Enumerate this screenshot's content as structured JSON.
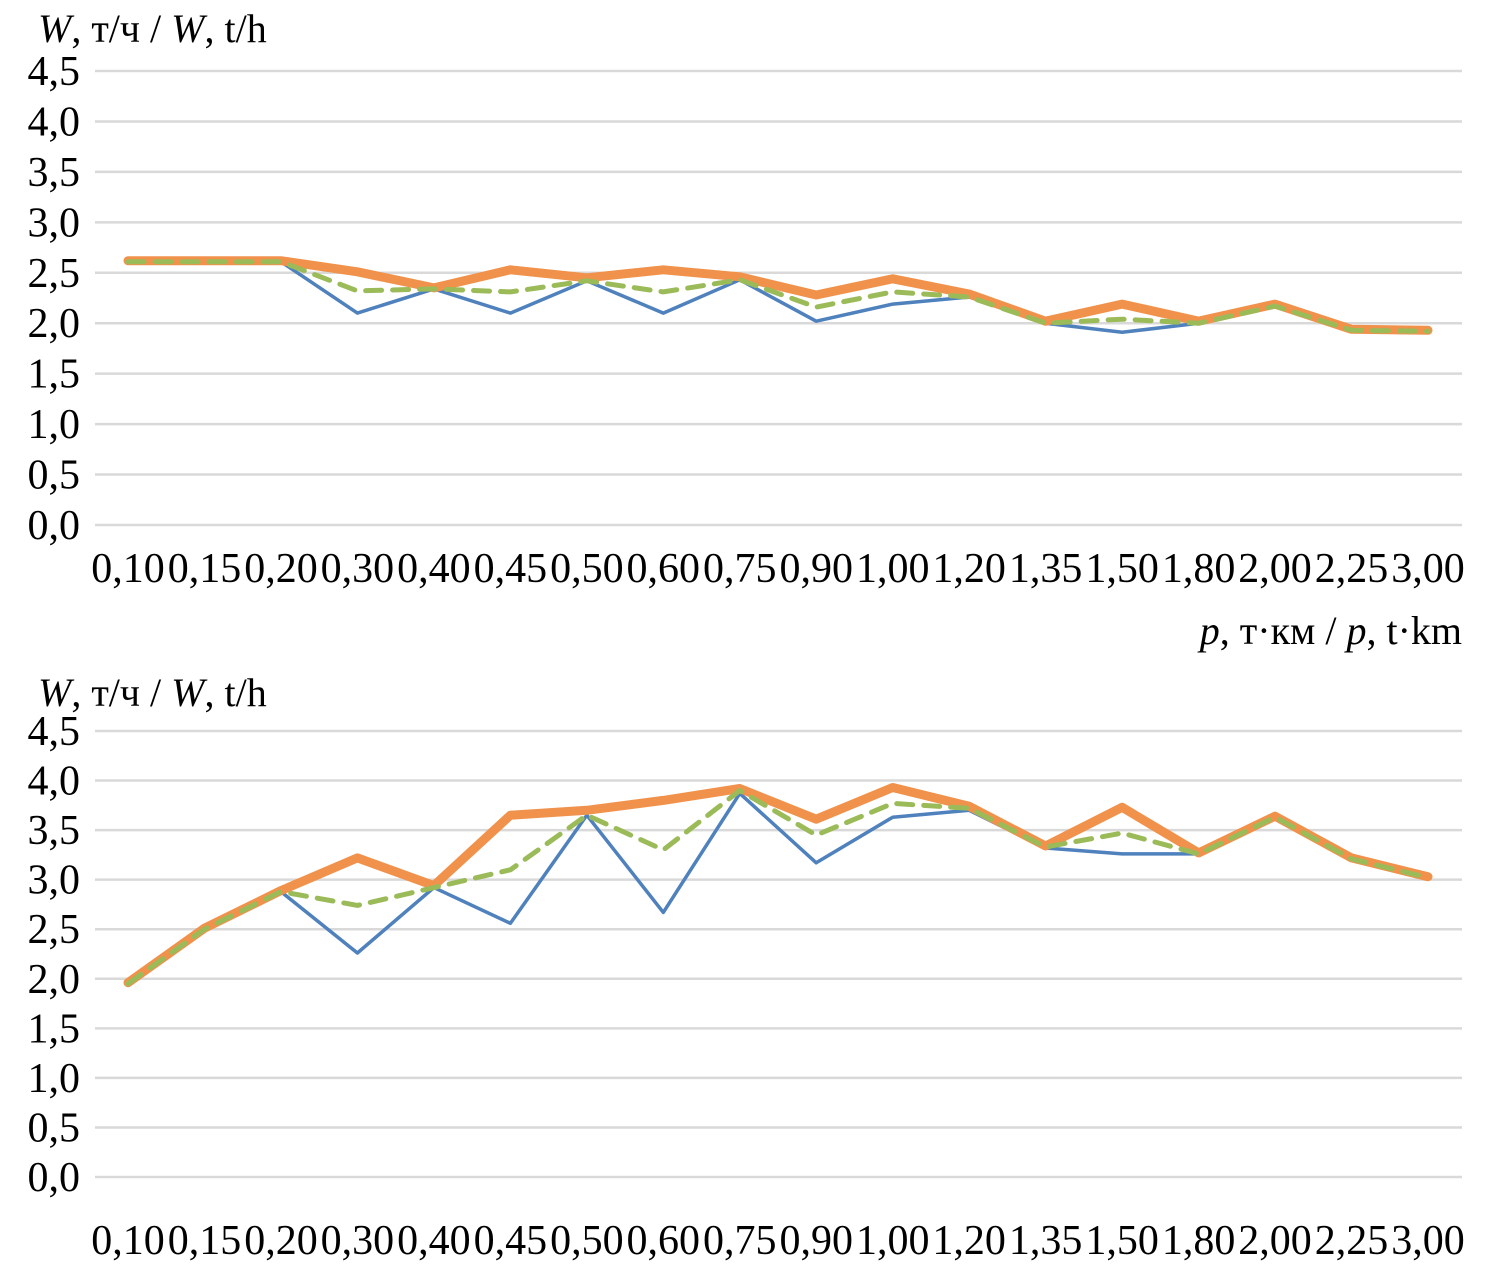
{
  "figure": {
    "background": "#ffffff",
    "gridline_color": "#d9d9d9",
    "text_color": "#000000"
  },
  "chart_data": [
    {
      "type": "line",
      "title": "",
      "ylabel": "W, т/ч / W, t/h",
      "ylabel_parts": [
        {
          "t": "W",
          "i": true
        },
        {
          "t": ", т/ч / ",
          "i": false
        },
        {
          "t": "W",
          "i": true
        },
        {
          "t": ", t/h",
          "i": false
        }
      ],
      "xlabel": "p, т·км / p, t·km",
      "xlabel_parts": [
        {
          "t": "p",
          "i": true
        },
        {
          "t": ", т·км / ",
          "i": false
        },
        {
          "t": "p",
          "i": true
        },
        {
          "t": ", t·km",
          "i": false
        }
      ],
      "categories": [
        "0,10",
        "0,15",
        "0,20",
        "0,30",
        "0,40",
        "0,45",
        "0,50",
        "0,60",
        "0,75",
        "0,90",
        "1,00",
        "1,20",
        "1,35",
        "1,50",
        "1,80",
        "2,00",
        "2,25",
        "3,00"
      ],
      "yticks": [
        "4,5",
        "4,0",
        "3,5",
        "3,0",
        "2,5",
        "2,0",
        "1,5",
        "1,0",
        "0,5",
        "0,0"
      ],
      "ylim": [
        0,
        4.5
      ],
      "grid": true,
      "legend": "none",
      "series": [
        {
          "name": "thin-blue-solid",
          "color": "#4f81bd",
          "style": "solid",
          "stroke_width": 3.5,
          "values": [
            2.61,
            2.61,
            2.61,
            2.1,
            2.34,
            2.1,
            2.42,
            2.1,
            2.43,
            2.02,
            2.19,
            2.26,
            2.0,
            1.91,
            2.0,
            2.17,
            1.93,
            1.92
          ]
        },
        {
          "name": "green-dashed",
          "color": "#9bbb59",
          "style": "dashed",
          "stroke_width": 5,
          "values": [
            2.61,
            2.61,
            2.61,
            2.32,
            2.34,
            2.31,
            2.42,
            2.31,
            2.43,
            2.16,
            2.31,
            2.26,
            2.0,
            2.04,
            2.0,
            2.17,
            1.93,
            1.92
          ]
        },
        {
          "name": "thick-orange-solid",
          "color": "#f0924b",
          "style": "solid",
          "stroke_width": 9,
          "values": [
            2.62,
            2.62,
            2.62,
            2.51,
            2.35,
            2.53,
            2.45,
            2.53,
            2.46,
            2.28,
            2.44,
            2.29,
            2.02,
            2.19,
            2.02,
            2.19,
            1.94,
            1.93
          ]
        }
      ]
    },
    {
      "type": "line",
      "title": "",
      "ylabel": "W, т/ч / W, t/h",
      "ylabel_parts": [
        {
          "t": "W",
          "i": true
        },
        {
          "t": ", т/ч / ",
          "i": false
        },
        {
          "t": "W",
          "i": true
        },
        {
          "t": ", t/h",
          "i": false
        }
      ],
      "xlabel": "",
      "xlabel_parts": [],
      "categories": [
        "0,10",
        "0,15",
        "0,20",
        "0,30",
        "0,40",
        "0,45",
        "0,50",
        "0,60",
        "0,75",
        "0,90",
        "1,00",
        "1,20",
        "1,35",
        "1,50",
        "1,80",
        "2,00",
        "2,25",
        "3,00"
      ],
      "yticks": [
        "4,5",
        "4,0",
        "3,5",
        "3,0",
        "2,5",
        "2,0",
        "1,5",
        "1,0",
        "0,5",
        "0,0"
      ],
      "ylim": [
        0,
        4.5
      ],
      "grid": true,
      "legend": "none",
      "series": [
        {
          "name": "thin-blue-solid",
          "color": "#4f81bd",
          "style": "solid",
          "stroke_width": 3.5,
          "values": [
            1.95,
            2.5,
            2.88,
            2.26,
            2.92,
            2.56,
            3.65,
            2.67,
            3.87,
            3.17,
            3.63,
            3.7,
            3.32,
            3.26,
            3.26,
            3.63,
            3.21,
            3.02
          ]
        },
        {
          "name": "green-dashed",
          "color": "#9bbb59",
          "style": "dashed",
          "stroke_width": 5,
          "values": [
            1.95,
            2.5,
            2.88,
            2.74,
            2.92,
            3.1,
            3.65,
            3.3,
            3.9,
            3.45,
            3.77,
            3.72,
            3.33,
            3.47,
            3.26,
            3.63,
            3.21,
            3.02
          ]
        },
        {
          "name": "thick-orange-solid",
          "color": "#f0924b",
          "style": "solid",
          "stroke_width": 9,
          "values": [
            1.96,
            2.51,
            2.89,
            3.22,
            2.94,
            3.65,
            3.7,
            3.8,
            3.92,
            3.61,
            3.93,
            3.74,
            3.34,
            3.73,
            3.27,
            3.64,
            3.22,
            3.03
          ]
        }
      ]
    }
  ]
}
